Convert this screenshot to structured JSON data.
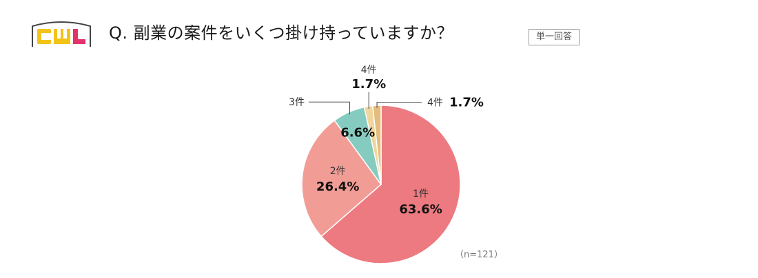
{
  "header": {
    "logo_text": "CWL",
    "question": "Q. 副業の案件をいくつ掛け持っていますか？",
    "tag": "単一回答"
  },
  "colors": {
    "logo_yellow": "#f2c318",
    "logo_pink": "#e2336b",
    "logo_frame": "#444444"
  },
  "chart_data": {
    "type": "pie",
    "categories": [
      "1件",
      "2件",
      "3件",
      "4件",
      "4件"
    ],
    "values": [
      63.6,
      26.4,
      6.6,
      1.7,
      1.7
    ],
    "value_labels": [
      "63.6%",
      "26.4%",
      "6.6%",
      "1.7%",
      "1.7%"
    ],
    "colors": [
      "#ec7a80",
      "#f29c96",
      "#86cbbf",
      "#f0d59c",
      "#e4bd7c"
    ],
    "start": "12 o'clock",
    "direction": "clockwise",
    "note": "（n=121）"
  }
}
